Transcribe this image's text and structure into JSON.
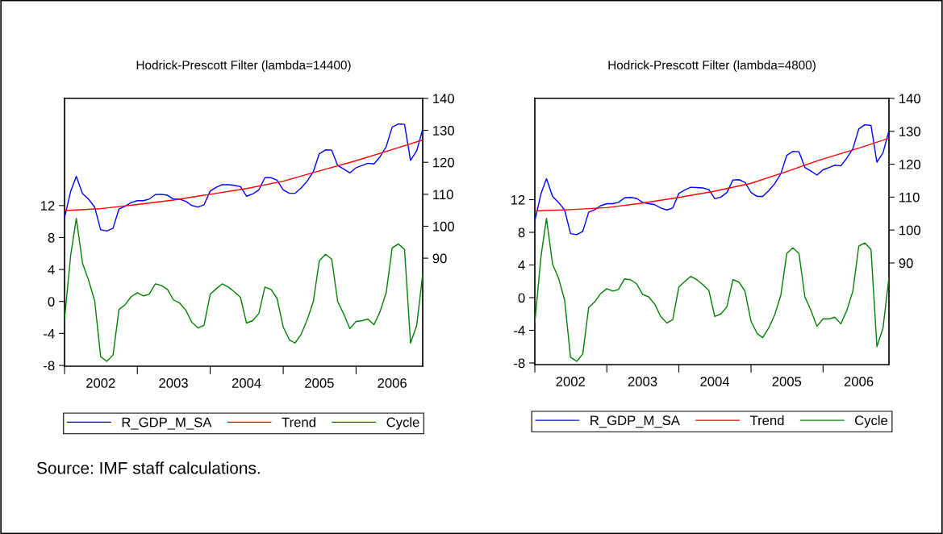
{
  "chart_data": [
    {
      "type": "line",
      "title": "Hodrick-Prescott Filter (lambda=14400)",
      "x": [
        "2002-01",
        "2002-02",
        "2002-03",
        "2002-04",
        "2002-05",
        "2002-06",
        "2002-07",
        "2002-08",
        "2002-09",
        "2002-10",
        "2002-11",
        "2002-12",
        "2003-01",
        "2003-02",
        "2003-03",
        "2003-04",
        "2003-05",
        "2003-06",
        "2003-07",
        "2003-08",
        "2003-09",
        "2003-10",
        "2003-11",
        "2003-12",
        "2004-01",
        "2004-02",
        "2004-03",
        "2004-04",
        "2004-05",
        "2004-06",
        "2004-07",
        "2004-08",
        "2004-09",
        "2004-10",
        "2004-11",
        "2004-12",
        "2005-01",
        "2005-02",
        "2005-03",
        "2005-04",
        "2005-05",
        "2005-06",
        "2005-07",
        "2005-08",
        "2005-09",
        "2005-10",
        "2005-11",
        "2005-12",
        "2006-01",
        "2006-02",
        "2006-03",
        "2006-04",
        "2006-05",
        "2006-06",
        "2006-07",
        "2006-08",
        "2006-09",
        "2006-10",
        "2006-11",
        "2006-12"
      ],
      "series": [
        {
          "name": "R_GDP_M_SA",
          "color": "#0000ff",
          "axis": "y2",
          "values": [
            102.7,
            111.0,
            115.6,
            110.2,
            108.5,
            106.0,
            98.9,
            98.5,
            99.4,
            105.4,
            106.3,
            107.4,
            108.0,
            108.0,
            108.5,
            109.9,
            110.0,
            109.7,
            108.5,
            108.5,
            107.8,
            106.5,
            106.0,
            106.7,
            111.0,
            112.2,
            113.0,
            113.0,
            112.8,
            112.4,
            109.4,
            110.1,
            111.4,
            115.2,
            115.2,
            114.4,
            111.4,
            110.3,
            110.3,
            112.0,
            114.1,
            117.1,
            122.7,
            123.9,
            123.8,
            119.0,
            117.9,
            116.7,
            118.3,
            119.0,
            119.7,
            119.5,
            121.7,
            124.9,
            131.0,
            132.0,
            131.9,
            120.6,
            123.6,
            130.4
          ]
        },
        {
          "name": "Trend",
          "color": "#ff0000",
          "axis": "y2",
          "x": [
            "2002-01",
            "2002-07",
            "2003-01",
            "2003-07",
            "2004-01",
            "2004-07",
            "2005-01",
            "2005-07",
            "2006-01",
            "2006-07",
            "2006-12"
          ],
          "values": [
            104.9,
            105.5,
            106.8,
            108.2,
            110.0,
            111.8,
            114.1,
            117.3,
            120.5,
            124.0,
            127.0
          ]
        },
        {
          "name": "Cycle",
          "color": "#008000",
          "axis": "y",
          "values": [
            -2.2,
            5.8,
            10.4,
            4.8,
            2.7,
            0.1,
            -6.9,
            -7.5,
            -6.7,
            -1.0,
            -0.4,
            0.6,
            1.1,
            0.7,
            0.9,
            2.2,
            2.0,
            1.5,
            0.2,
            -0.2,
            -1.1,
            -2.6,
            -3.3,
            -3.0,
            0.9,
            1.6,
            2.2,
            1.8,
            1.2,
            0.5,
            -2.7,
            -2.4,
            -1.5,
            1.8,
            1.5,
            0.4,
            -3.2,
            -4.8,
            -5.2,
            -4.1,
            -2.3,
            0.0,
            5.1,
            5.9,
            5.3,
            0.0,
            -1.6,
            -3.4,
            -2.5,
            -2.4,
            -2.2,
            -2.9,
            -1.3,
            1.1,
            6.7,
            7.2,
            6.5,
            -5.2,
            -3.0,
            3.4
          ]
        }
      ],
      "xlim": [
        "2002-01",
        "2006-12"
      ],
      "xticks": [
        {
          "value": "2002-01",
          "label": null
        },
        {
          "value": "2002-07",
          "label": "2002"
        },
        {
          "value": "2003-01",
          "label": null
        },
        {
          "value": "2003-07",
          "label": "2003"
        },
        {
          "value": "2004-01",
          "label": null
        },
        {
          "value": "2004-07",
          "label": "2004"
        },
        {
          "value": "2005-01",
          "label": null
        },
        {
          "value": "2005-07",
          "label": "2005"
        },
        {
          "value": "2006-01",
          "label": null
        },
        {
          "value": "2006-07",
          "label": "2006"
        }
      ],
      "ylim": [
        -8.1,
        25.4
      ],
      "yticks": [
        -8,
        -4,
        0,
        4,
        8,
        12
      ],
      "y2lim": [
        56.2,
        140
      ],
      "y2ticks": [
        90,
        100,
        110,
        120,
        130,
        140
      ],
      "legend": "bottom",
      "grid": false,
      "annotations": [
        "Source: IMF staff calculations."
      ]
    },
    {
      "type": "line",
      "title": "Hodrick-Prescott Filter (lambda=4800)",
      "x": [
        "2002-01",
        "2002-02",
        "2002-03",
        "2002-04",
        "2002-05",
        "2002-06",
        "2002-07",
        "2002-08",
        "2002-09",
        "2002-10",
        "2002-11",
        "2002-12",
        "2003-01",
        "2003-02",
        "2003-03",
        "2003-04",
        "2003-05",
        "2003-06",
        "2003-07",
        "2003-08",
        "2003-09",
        "2003-10",
        "2003-11",
        "2003-12",
        "2004-01",
        "2004-02",
        "2004-03",
        "2004-04",
        "2004-05",
        "2004-06",
        "2004-07",
        "2004-08",
        "2004-09",
        "2004-10",
        "2004-11",
        "2004-12",
        "2005-01",
        "2005-02",
        "2005-03",
        "2005-04",
        "2005-05",
        "2005-06",
        "2005-07",
        "2005-08",
        "2005-09",
        "2005-10",
        "2005-11",
        "2005-12",
        "2006-01",
        "2006-02",
        "2006-03",
        "2006-04",
        "2006-05",
        "2006-06",
        "2006-07",
        "2006-08",
        "2006-09",
        "2006-10",
        "2006-11",
        "2006-12"
      ],
      "series": [
        {
          "name": "R_GDP_M_SA",
          "color": "#0000ff",
          "axis": "y2",
          "values": [
            102.8,
            111.0,
            115.6,
            110.2,
            108.4,
            106.1,
            98.9,
            98.6,
            99.6,
            105.4,
            106.2,
            107.4,
            108.0,
            108.0,
            108.4,
            109.8,
            109.9,
            109.6,
            108.4,
            108.0,
            107.7,
            106.7,
            106.1,
            106.7,
            111.1,
            112.2,
            113.0,
            112.9,
            112.8,
            112.3,
            109.5,
            110.0,
            111.4,
            115.2,
            115.3,
            114.5,
            111.4,
            110.2,
            110.2,
            112.0,
            114.1,
            117.1,
            122.7,
            123.9,
            123.8,
            119.0,
            117.9,
            116.7,
            118.3,
            119.0,
            119.7,
            119.5,
            121.8,
            124.7,
            130.7,
            132.0,
            131.8,
            120.6,
            123.5,
            130.2
          ]
        },
        {
          "name": "Trend",
          "color": "#ff0000",
          "axis": "y2",
          "x": [
            "2002-01",
            "2002-07",
            "2003-01",
            "2003-07",
            "2004-01",
            "2004-07",
            "2005-01",
            "2005-07",
            "2006-01",
            "2006-07",
            "2006-12"
          ],
          "values": [
            105.8,
            106.2,
            106.8,
            108.2,
            109.9,
            111.8,
            114.2,
            117.8,
            121.6,
            124.9,
            127.9
          ]
        },
        {
          "name": "Cycle",
          "color": "#008000",
          "axis": "y",
          "values": [
            -3.1,
            5.0,
            9.7,
            4.1,
            2.4,
            -0.3,
            -7.3,
            -7.8,
            -6.9,
            -1.2,
            -0.5,
            0.5,
            1.1,
            0.8,
            1.0,
            2.3,
            2.2,
            1.7,
            0.4,
            0.1,
            -0.8,
            -2.3,
            -3.1,
            -2.7,
            1.3,
            2.0,
            2.6,
            2.2,
            1.6,
            0.9,
            -2.3,
            -2.0,
            -1.1,
            2.2,
            1.9,
            0.8,
            -2.9,
            -4.4,
            -4.9,
            -3.7,
            -2.1,
            0.3,
            5.4,
            6.1,
            5.4,
            0.1,
            -1.6,
            -3.5,
            -2.6,
            -2.6,
            -2.4,
            -3.2,
            -1.6,
            0.8,
            6.3,
            6.7,
            5.9,
            -6.0,
            -3.7,
            2.5
          ]
        }
      ],
      "xlim": [
        "2002-01",
        "2006-12"
      ],
      "xticks": [
        {
          "value": "2002-01",
          "label": null
        },
        {
          "value": "2002-07",
          "label": "2002"
        },
        {
          "value": "2003-01",
          "label": null
        },
        {
          "value": "2003-07",
          "label": "2003"
        },
        {
          "value": "2004-01",
          "label": null
        },
        {
          "value": "2004-07",
          "label": "2004"
        },
        {
          "value": "2005-01",
          "label": null
        },
        {
          "value": "2005-07",
          "label": "2005"
        },
        {
          "value": "2006-01",
          "label": null
        },
        {
          "value": "2006-07",
          "label": "2006"
        }
      ],
      "ylim": [
        -8.2,
        24.4
      ],
      "yticks": [
        -8,
        -4,
        0,
        4,
        8,
        12
      ],
      "y2lim": [
        59.1,
        140
      ],
      "y2ticks": [
        90,
        100,
        110,
        120,
        130,
        140
      ],
      "legend": "bottom",
      "grid": false
    }
  ]
}
